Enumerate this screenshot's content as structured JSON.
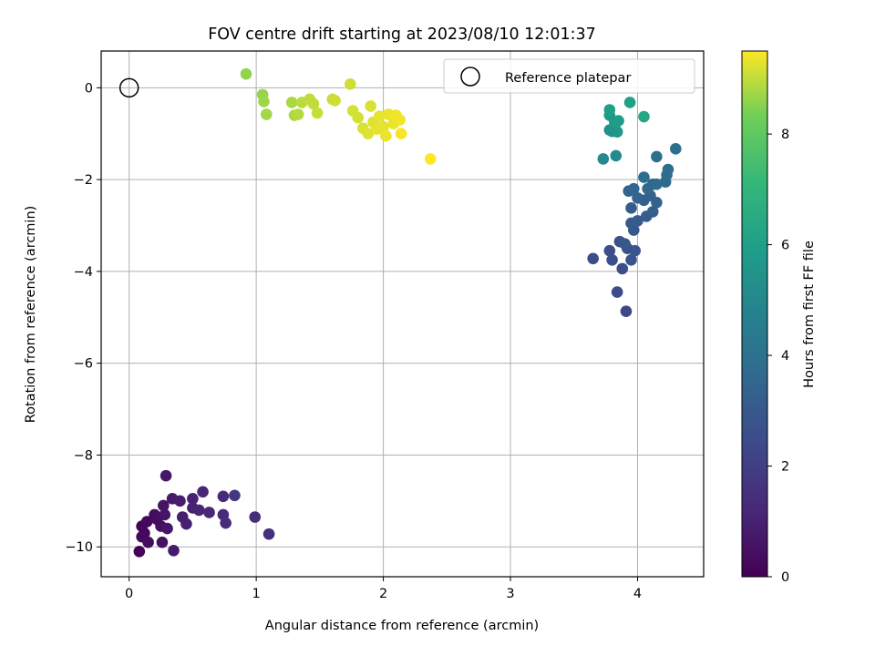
{
  "chart_data": {
    "type": "scatter",
    "title": "FOV centre drift starting at 2023/08/10 12:01:37",
    "xlabel": "Angular distance from reference (arcmin)",
    "ylabel": "Rotation from reference (arcmin)",
    "colorbar_label": "Hours from first FF file",
    "xlim": [
      -0.22,
      4.52
    ],
    "ylim": [
      -10.65,
      0.8
    ],
    "clim": [
      0,
      9.5
    ],
    "x_ticks": [
      0,
      1,
      2,
      3,
      4
    ],
    "y_ticks": [
      0,
      -2,
      -4,
      -6,
      -8,
      -10
    ],
    "colorbar_ticks": [
      0,
      2,
      4,
      6,
      8
    ],
    "x_tick_labels": [
      "0",
      "1",
      "2",
      "3",
      "4"
    ],
    "y_tick_labels": [
      "0",
      "−2",
      "−4",
      "−6",
      "−8",
      "−10"
    ],
    "colorbar_tick_labels": [
      "0",
      "2",
      "4",
      "6",
      "8"
    ],
    "grid": true,
    "colormap": "viridis",
    "legend": {
      "position": "top-right",
      "label": "Reference platepar"
    },
    "reference_point": {
      "x": 0,
      "y": 0
    },
    "points": [
      [
        0.08,
        -10.1,
        0.05
      ],
      [
        0.1,
        -9.55,
        0.1
      ],
      [
        0.12,
        -9.7,
        0.15
      ],
      [
        0.1,
        -9.78,
        0.2
      ],
      [
        0.14,
        -9.45,
        0.25
      ],
      [
        0.15,
        -9.9,
        0.3
      ],
      [
        0.2,
        -9.3,
        0.35
      ],
      [
        0.22,
        -9.4,
        0.4
      ],
      [
        0.25,
        -9.55,
        0.45
      ],
      [
        0.26,
        -9.9,
        0.5
      ],
      [
        0.27,
        -9.1,
        0.55
      ],
      [
        0.28,
        -9.3,
        0.6
      ],
      [
        0.3,
        -9.6,
        0.65
      ],
      [
        0.29,
        -8.45,
        0.7
      ],
      [
        0.34,
        -8.95,
        0.75
      ],
      [
        0.35,
        -10.08,
        0.8
      ],
      [
        0.4,
        -9.0,
        0.85
      ],
      [
        0.42,
        -9.35,
        0.9
      ],
      [
        0.45,
        -9.5,
        0.95
      ],
      [
        0.5,
        -9.15,
        1.0
      ],
      [
        0.5,
        -8.95,
        1.05
      ],
      [
        0.55,
        -9.2,
        1.1
      ],
      [
        0.58,
        -8.8,
        1.15
      ],
      [
        0.63,
        -9.25,
        1.2
      ],
      [
        0.74,
        -8.9,
        1.25
      ],
      [
        0.74,
        -9.3,
        1.3
      ],
      [
        0.76,
        -9.48,
        1.35
      ],
      [
        0.99,
        -9.35,
        1.4
      ],
      [
        1.1,
        -9.72,
        1.45
      ],
      [
        0.83,
        -8.88,
        1.75
      ],
      [
        3.91,
        -4.87,
        2.3
      ],
      [
        3.84,
        -4.45,
        2.4
      ],
      [
        3.88,
        -3.94,
        2.5
      ],
      [
        3.65,
        -3.72,
        2.55
      ],
      [
        3.78,
        -3.55,
        2.6
      ],
      [
        3.8,
        -3.75,
        2.65
      ],
      [
        3.86,
        -3.35,
        2.7
      ],
      [
        3.92,
        -3.5,
        2.75
      ],
      [
        3.95,
        -3.75,
        2.8
      ],
      [
        3.98,
        -3.55,
        2.85
      ],
      [
        3.9,
        -3.4,
        2.9
      ],
      [
        3.97,
        -3.1,
        2.95
      ],
      [
        3.95,
        -2.95,
        3.0
      ],
      [
        4.0,
        -2.9,
        3.05
      ],
      [
        3.95,
        -2.62,
        3.1
      ],
      [
        4.07,
        -2.8,
        3.15
      ],
      [
        4.12,
        -2.7,
        3.2
      ],
      [
        4.05,
        -2.45,
        3.25
      ],
      [
        4.1,
        -2.35,
        3.3
      ],
      [
        4.15,
        -2.5,
        3.35
      ],
      [
        4.0,
        -2.4,
        3.4
      ],
      [
        3.93,
        -2.25,
        3.45
      ],
      [
        3.97,
        -2.2,
        3.5
      ],
      [
        4.08,
        -2.2,
        3.55
      ],
      [
        4.12,
        -2.1,
        3.6
      ],
      [
        4.15,
        -2.1,
        3.65
      ],
      [
        4.22,
        -2.05,
        3.7
      ],
      [
        4.23,
        -1.9,
        3.75
      ],
      [
        4.24,
        -1.78,
        3.8
      ],
      [
        4.05,
        -1.95,
        3.85
      ],
      [
        4.15,
        -1.5,
        3.9
      ],
      [
        4.3,
        -1.33,
        3.95
      ],
      [
        3.73,
        -1.55,
        5.0
      ],
      [
        3.83,
        -1.48,
        5.1
      ],
      [
        3.78,
        -0.92,
        5.3
      ],
      [
        3.8,
        -0.95,
        5.4
      ],
      [
        3.82,
        -0.88,
        5.5
      ],
      [
        3.84,
        -0.96,
        5.6
      ],
      [
        3.78,
        -0.6,
        5.7
      ],
      [
        3.82,
        -0.75,
        5.8
      ],
      [
        3.85,
        -0.72,
        5.9
      ],
      [
        3.78,
        -0.48,
        6.0
      ],
      [
        3.94,
        -0.32,
        6.1
      ],
      [
        4.05,
        -0.63,
        6.3
      ],
      [
        0.92,
        0.3,
        8.6
      ],
      [
        1.05,
        -0.15,
        8.65
      ],
      [
        1.06,
        -0.3,
        8.7
      ],
      [
        1.08,
        -0.58,
        8.75
      ],
      [
        1.28,
        -0.32,
        8.8
      ],
      [
        1.3,
        -0.6,
        8.85
      ],
      [
        1.33,
        -0.58,
        8.9
      ],
      [
        1.36,
        -0.32,
        8.95
      ],
      [
        1.42,
        -0.25,
        9.0
      ],
      [
        1.45,
        -0.35,
        9.0
      ],
      [
        1.48,
        -0.55,
        9.05
      ],
      [
        1.6,
        -0.25,
        9.05
      ],
      [
        1.62,
        -0.28,
        9.1
      ],
      [
        1.74,
        0.08,
        9.1
      ],
      [
        1.76,
        -0.5,
        9.15
      ],
      [
        1.8,
        -0.65,
        9.15
      ],
      [
        1.84,
        -0.88,
        9.2
      ],
      [
        1.9,
        -0.4,
        9.2
      ],
      [
        1.88,
        -1.0,
        9.25
      ],
      [
        1.92,
        -0.75,
        9.25
      ],
      [
        1.95,
        -0.9,
        9.3
      ],
      [
        1.97,
        -0.62,
        9.3
      ],
      [
        2.0,
        -0.85,
        9.3
      ],
      [
        2.02,
        -1.05,
        9.35
      ],
      [
        2.04,
        -0.58,
        9.35
      ],
      [
        2.08,
        -0.78,
        9.35
      ],
      [
        2.1,
        -0.6,
        9.4
      ],
      [
        2.13,
        -0.7,
        9.4
      ],
      [
        2.14,
        -1.0,
        9.45
      ],
      [
        2.37,
        -1.55,
        9.5
      ]
    ]
  }
}
